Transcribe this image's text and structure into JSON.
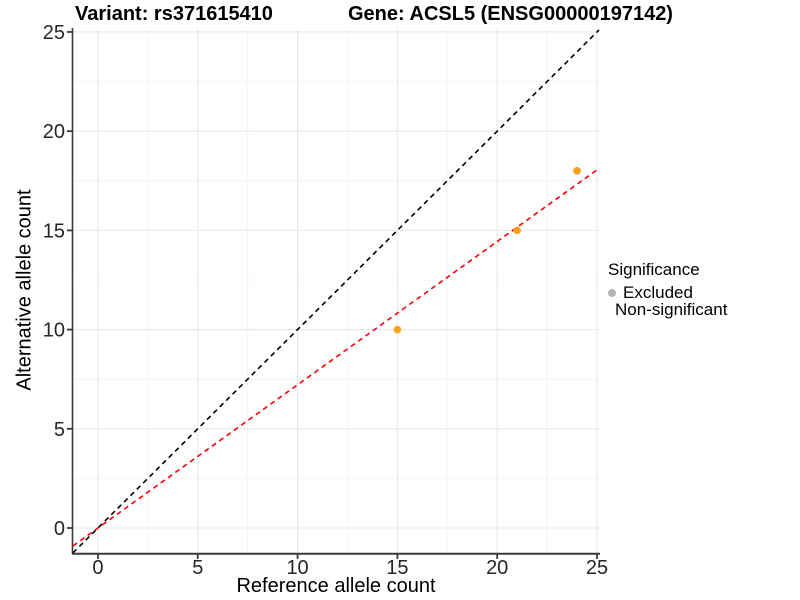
{
  "chart_data": {
    "type": "scatter",
    "title_left": "Variant: rs371615410",
    "title_right": "Gene: ACSL5 (ENSG00000197142)",
    "xlabel": "Reference allele count",
    "ylabel": "Alternative allele count",
    "xlim": [
      -1.25,
      25.1
    ],
    "ylim": [
      -1.26,
      25.2
    ],
    "x_ticks": [
      0,
      5,
      10,
      15,
      20,
      25
    ],
    "y_ticks": [
      0,
      5,
      10,
      15,
      20,
      25
    ],
    "minor_ticks": [
      2.5,
      7.5,
      12.5,
      17.5,
      22.5
    ],
    "grid": true,
    "points": [
      {
        "x": 15,
        "y": 10,
        "series": "Non-significant"
      },
      {
        "x": 21,
        "y": 15,
        "series": "Non-significant"
      },
      {
        "x": 24,
        "y": 18,
        "series": "Non-significant"
      }
    ],
    "lines": [
      {
        "name": "identity",
        "slope": 1,
        "intercept": 0,
        "color": "#000000",
        "style": "dashed"
      },
      {
        "name": "fit",
        "slope": 0.722,
        "intercept": 0,
        "color": "#FF0000",
        "style": "dashed"
      }
    ],
    "legend": {
      "title": "Significance",
      "position": "right",
      "entries": [
        {
          "label": "Excluded",
          "color": "#B5B5B5"
        },
        {
          "label": "Non-significant",
          "color": "#F9A11B"
        }
      ]
    },
    "colors": {
      "point": "#F9A11B",
      "grid_major": "#E8E8E8",
      "grid_minor": "#F4F4F4",
      "axis_line": "#3A3A3A",
      "tick_text": "#262626"
    }
  }
}
